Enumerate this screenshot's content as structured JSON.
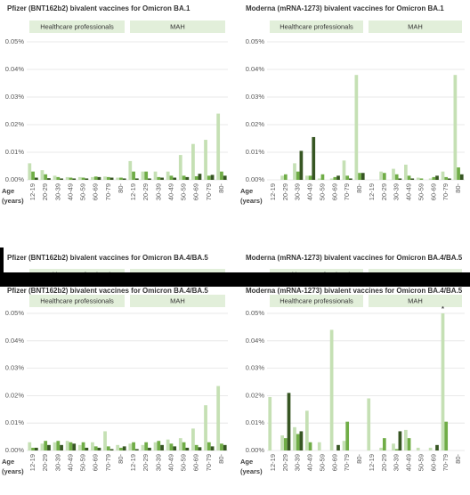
{
  "chart_data": [
    {
      "type": "bar",
      "title": "Pfizer (BNT162b2) bivalent vaccines for Omicron BA.1",
      "panels": [
        "Healthcare professionals",
        "MAH"
      ],
      "categories": [
        "12-19",
        "20-29",
        "30-39",
        "40-49",
        "50-59",
        "60-69",
        "70-79",
        "80-",
        "12-19",
        "20-29",
        "30-39",
        "40-49",
        "50-59",
        "60-69",
        "70-79",
        "80-"
      ],
      "x_label": [
        "Age",
        "(years)"
      ],
      "series": [
        {
          "color": "#c5e0b4",
          "values": [
            0.006,
            0.0035,
            0.0015,
            0.001,
            0.001,
            0.001,
            0.0012,
            0.0008,
            0.0068,
            0.003,
            0.003,
            0.003,
            0.009,
            0.013,
            0.0145,
            0.024
          ]
        },
        {
          "color": "#70ad47",
          "values": [
            0.003,
            0.002,
            0.001,
            0.0008,
            0.0008,
            0.0012,
            0.001,
            0.0008,
            0.003,
            0.003,
            0.001,
            0.0015,
            0.0015,
            0.0013,
            0.0015,
            0.003
          ]
        },
        {
          "color": "#375623",
          "values": [
            0.0008,
            0.0006,
            0.0005,
            0.0005,
            0.0005,
            0.001,
            0.0008,
            0.0005,
            0.0005,
            0.0005,
            0.0008,
            0.0008,
            0.001,
            0.0022,
            0.0018,
            0.0015
          ]
        }
      ],
      "ylim": [
        0,
        0.05
      ],
      "yticks": [
        {
          "value": 0,
          "label": "0.00%"
        },
        {
          "value": 0.01,
          "label": "0.01%"
        },
        {
          "value": 0.02,
          "label": "0.02%"
        },
        {
          "value": 0.03,
          "label": "0.03%"
        },
        {
          "value": 0.04,
          "label": "0.04%"
        },
        {
          "value": 0.05,
          "label": "0.05%"
        }
      ]
    },
    {
      "type": "bar",
      "title": "Moderna (mRNA-1273) bivalent vaccines for Omicron BA.1",
      "panels": [
        "Healthcare professionals",
        "MAH"
      ],
      "categories": [
        "12-19",
        "20-29",
        "30-39",
        "40-49",
        "50-59",
        "60-69",
        "70-79",
        "80-",
        "12-19",
        "20-29",
        "30-39",
        "40-49",
        "50-59",
        "60-69",
        "70-79",
        "80-"
      ],
      "x_label": [
        "Age",
        "(years)"
      ],
      "series": [
        {
          "color": "#c5e0b4",
          "values": [
            0,
            0.0015,
            0.006,
            0.0015,
            0.0005,
            0.0005,
            0.007,
            0.038,
            0,
            0.003,
            0.004,
            0.0055,
            0.0008,
            0.0005,
            0.003,
            0.038
          ]
        },
        {
          "color": "#70ad47",
          "values": [
            0,
            0.002,
            0.003,
            0.0015,
            0.002,
            0.001,
            0.0015,
            0.0025,
            0,
            0.0025,
            0.002,
            0.0015,
            0.0005,
            0.001,
            0.001,
            0.0045
          ]
        },
        {
          "color": "#375623",
          "values": [
            0,
            0,
            0.0105,
            0.0155,
            0,
            0.0015,
            0.0005,
            0.0025,
            0,
            0,
            0.0005,
            0.0005,
            0,
            0.0015,
            0.0005,
            0.002
          ]
        }
      ],
      "ylim": [
        0,
        0.05
      ],
      "yticks": [
        {
          "value": 0,
          "label": "0.00%"
        },
        {
          "value": 0.01,
          "label": "0.01%"
        },
        {
          "value": 0.02,
          "label": "0.02%"
        },
        {
          "value": 0.03,
          "label": "0.03%"
        },
        {
          "value": 0.04,
          "label": "0.04%"
        },
        {
          "value": 0.05,
          "label": "0.05%"
        }
      ]
    },
    {
      "type": "bar",
      "title": "Pfizer (BNT162b2) bivalent vaccines for Omicron BA.4/BA.5",
      "panels": [
        "Healthcare professionals",
        "MAH"
      ],
      "categories": [
        "12-19",
        "20-29",
        "30-39",
        "40-49",
        "50-59",
        "60-69",
        "70-79",
        "80-",
        "12-19",
        "20-29",
        "30-39",
        "40-49",
        "50-59",
        "60-69",
        "70-79",
        "80-"
      ],
      "x_label": [
        "Age",
        "(years)"
      ],
      "series": [
        {
          "color": "#c5e0b4",
          "values": [
            0.003,
            0.0025,
            0.003,
            0.0035,
            0.002,
            0.003,
            0.007,
            0.002,
            0.0025,
            0.002,
            0.003,
            0.004,
            0.0045,
            0.008,
            0.0165,
            0.0235
          ]
        },
        {
          "color": "#70ad47",
          "values": [
            0.001,
            0.0035,
            0.0035,
            0.003,
            0.003,
            0.0015,
            0.0015,
            0.001,
            0.003,
            0.003,
            0.0035,
            0.0025,
            0.003,
            0.002,
            0.003,
            0.0025
          ]
        },
        {
          "color": "#375623",
          "values": [
            0.001,
            0.002,
            0.002,
            0.0025,
            0.001,
            0.001,
            0.0005,
            0.0015,
            0.0005,
            0.001,
            0.002,
            0.0015,
            0.001,
            0.0012,
            0.0015,
            0.002
          ]
        }
      ],
      "ylim": [
        0,
        0.05
      ],
      "yticks": [
        {
          "value": 0,
          "label": "0.00%"
        },
        {
          "value": 0.01,
          "label": "0.01%"
        },
        {
          "value": 0.02,
          "label": "0.02%"
        },
        {
          "value": 0.03,
          "label": "0.03%"
        },
        {
          "value": 0.04,
          "label": "0.04%"
        },
        {
          "value": 0.05,
          "label": "0.05%"
        }
      ]
    },
    {
      "type": "bar",
      "title": "Moderna (mRNA-1273) bivalent vaccines for Omicron BA.4/BA.5",
      "panels": [
        "Healthcare professionals",
        "MAH"
      ],
      "categories": [
        "12-19",
        "20-29",
        "30-39",
        "40-49",
        "50-59",
        "60-69",
        "70-79",
        "80-",
        "12-19",
        "20-29",
        "30-39",
        "40-49",
        "50-59",
        "60-69",
        "70-79",
        "80-"
      ],
      "x_label": [
        "Age",
        "(years)"
      ],
      "annotation": "*",
      "series": [
        {
          "color": "#c5e0b4",
          "values": [
            0.0195,
            0.0055,
            0.0085,
            0.0145,
            0.003,
            0.044,
            0.0035,
            0,
            0.019,
            0.001,
            0.0025,
            0.0075,
            0.001,
            0.001,
            0.05,
            0
          ]
        },
        {
          "color": "#70ad47",
          "values": [
            0,
            0.0045,
            0.006,
            0.003,
            0,
            0,
            0.0105,
            0,
            0,
            0.0045,
            0.0005,
            0.0045,
            0,
            0,
            0.0105,
            0
          ]
        },
        {
          "color": "#375623",
          "values": [
            0,
            0.021,
            0.007,
            0,
            0,
            0.002,
            0,
            0,
            0,
            0,
            0.007,
            0,
            0,
            0.002,
            0,
            0
          ]
        }
      ],
      "ylim": [
        0,
        0.05
      ],
      "yticks": [
        {
          "value": 0,
          "label": "0.00%"
        },
        {
          "value": 0.01,
          "label": "0.01%"
        },
        {
          "value": 0.02,
          "label": "0.02%"
        },
        {
          "value": 0.03,
          "label": "0.03%"
        },
        {
          "value": 0.04,
          "label": "0.04%"
        },
        {
          "value": 0.05,
          "label": "0.05%"
        }
      ]
    }
  ]
}
